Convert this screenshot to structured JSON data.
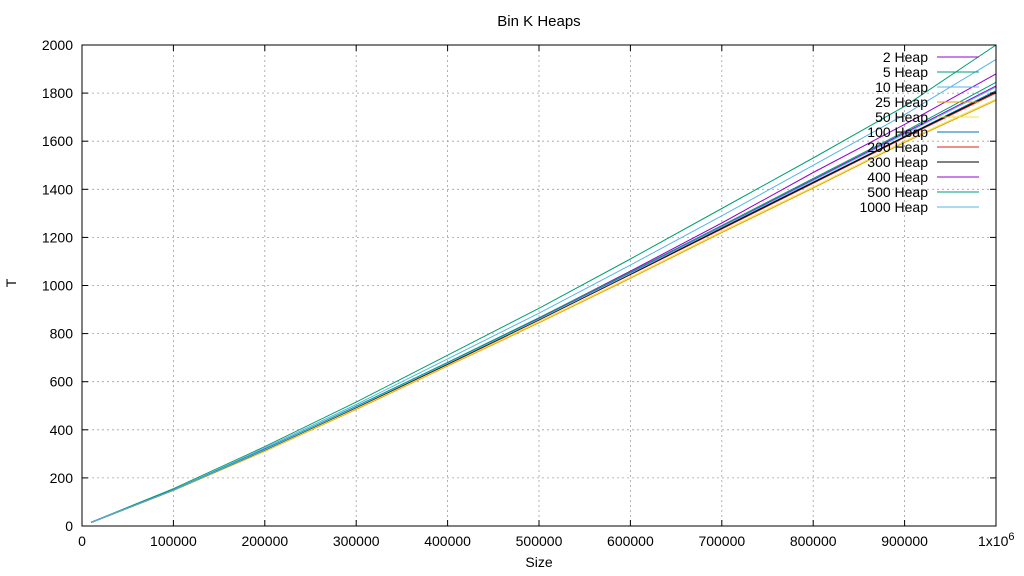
{
  "chart_data": {
    "type": "line",
    "title": "Bin K Heaps",
    "xlabel": "Size",
    "ylabel": "T",
    "xlim": [
      0,
      1000000
    ],
    "ylim": [
      0,
      2000
    ],
    "x_ticks": [
      0,
      100000,
      200000,
      300000,
      400000,
      500000,
      600000,
      700000,
      800000,
      900000
    ],
    "x_tick_labels": [
      "0",
      "100000",
      "200000",
      "300000",
      "400000",
      "500000",
      "600000",
      "700000",
      "800000",
      "900000"
    ],
    "x_multiplier_label": "1x10",
    "x_multiplier_exp": "6",
    "y_ticks": [
      0,
      200,
      400,
      600,
      800,
      1000,
      1200,
      1400,
      1600,
      1800,
      2000
    ],
    "grid": true,
    "legend_position": "top-right",
    "x": [
      10000,
      100000,
      200000,
      300000,
      400000,
      500000,
      600000,
      700000,
      800000,
      900000,
      1000000
    ],
    "series": [
      {
        "name": "2 Heap",
        "color": "#9400d3",
        "values": [
          15,
          150,
          320,
          495,
          680,
          865,
          1060,
          1260,
          1470,
          1670,
          1880
        ]
      },
      {
        "name": "5 Heap",
        "color": "#009e73",
        "values": [
          16,
          155,
          330,
          515,
          710,
          905,
          1110,
          1320,
          1530,
          1745,
          2000
        ]
      },
      {
        "name": "10 Heap",
        "color": "#56b4e9",
        "values": [
          15,
          150,
          325,
          505,
          695,
          885,
          1085,
          1290,
          1500,
          1710,
          1940
        ]
      },
      {
        "name": "25 Heap",
        "color": "#e69f00",
        "values": [
          14,
          148,
          310,
          485,
          665,
          845,
          1030,
          1220,
          1405,
          1595,
          1770
        ]
      },
      {
        "name": "50 Heap",
        "color": "#f0e442",
        "values": [
          14,
          147,
          312,
          488,
          668,
          850,
          1035,
          1225,
          1410,
          1600,
          1775
        ]
      },
      {
        "name": "100 Heap",
        "color": "#0072b2",
        "values": [
          15,
          150,
          318,
          495,
          675,
          860,
          1050,
          1240,
          1430,
          1620,
          1810
        ]
      },
      {
        "name": "200 Heap",
        "color": "#e51e10",
        "values": [
          15,
          149,
          316,
          492,
          672,
          856,
          1045,
          1235,
          1425,
          1615,
          1800
        ]
      },
      {
        "name": "300 Heap",
        "color": "#000000",
        "values": [
          15,
          149,
          316,
          493,
          673,
          858,
          1047,
          1238,
          1428,
          1618,
          1805
        ]
      },
      {
        "name": "400 Heap",
        "color": "#9400d3",
        "values": [
          15,
          150,
          318,
          497,
          678,
          862,
          1052,
          1245,
          1440,
          1635,
          1830
        ]
      },
      {
        "name": "500 Heap",
        "color": "#009e73",
        "values": [
          15,
          150,
          319,
          498,
          680,
          866,
          1056,
          1250,
          1445,
          1640,
          1845
        ]
      },
      {
        "name": "1000 Heap",
        "color": "#56b4e9",
        "values": [
          15,
          149,
          317,
          495,
          676,
          860,
          1050,
          1243,
          1436,
          1630,
          1825
        ]
      }
    ]
  }
}
